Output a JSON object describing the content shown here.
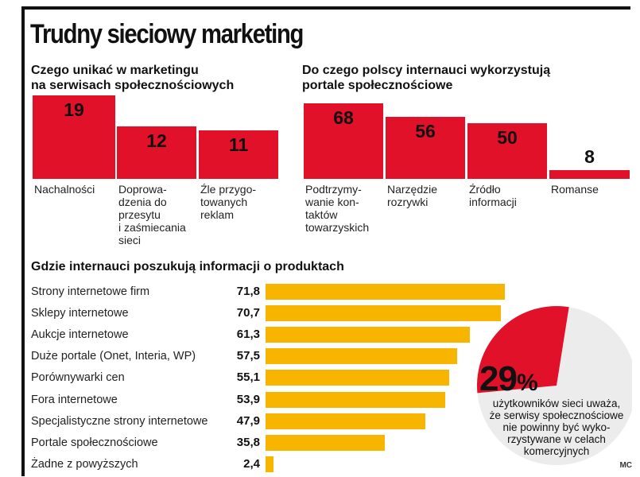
{
  "title": "Trudny sieciowy marketing",
  "credit": "MC",
  "colors": {
    "red": "#e2112a",
    "yellow": "#f7b500",
    "pie_bg": "#ececec"
  },
  "chart_data": [
    {
      "type": "bar",
      "title": "Czego unikać w marketingu\nna serwisach społecznościowych",
      "categories": [
        "Nachalności",
        "Doprowa-\ndzenia do\nprzesytu\ni zaśmiecania\nsieci",
        "Źle przygo-\ntowanych\nreklam"
      ],
      "values": [
        19,
        12,
        11
      ]
    },
    {
      "type": "bar",
      "title": "Do czego polscy internauci wykorzystują\nportale społecznościowe",
      "categories": [
        "Podtrzymy-\nwanie kon-\ntaktów\ntowarzyskich",
        "Narzędzie\nrozrywki",
        "Źródło\ninformacji",
        "Romanse"
      ],
      "values": [
        68,
        56,
        50,
        8
      ]
    },
    {
      "type": "bar",
      "orientation": "horizontal",
      "title": "Gdzie internauci poszukują informacji o produktach",
      "categories": [
        "Strony internetowe firm",
        "Sklepy internetowe",
        "Aukcje internetowe",
        "Duże portale (Onet, Interia, WP)",
        "Porównywarki cen",
        "Fora internetowe",
        "Specjalistyczne strony internetowe",
        "Portale społecznościowe",
        "Żadne z powyższych"
      ],
      "values": [
        71.8,
        70.7,
        61.3,
        57.5,
        55.1,
        53.9,
        47.9,
        35.8,
        2.4
      ],
      "value_labels": [
        "71,8",
        "70,7",
        "61,3",
        "57,5",
        "55,1",
        "53,9",
        "47,9",
        "35,8",
        "2,4"
      ]
    },
    {
      "type": "pie",
      "value": 29,
      "value_label": "29",
      "unit": "%",
      "text": "użytkowników sieci uważa,\nże serwisy społecznościowe\nnie powinny być wyko-\nrzystywane w celach\nkomercyjnych"
    }
  ]
}
